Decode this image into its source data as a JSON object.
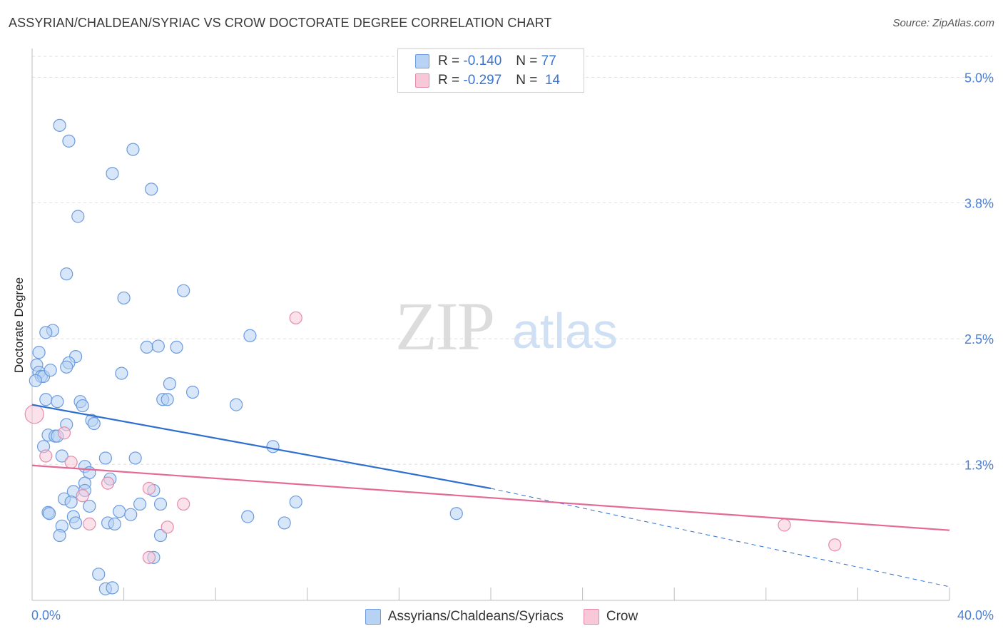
{
  "header": {
    "title": "ASSYRIAN/CHALDEAN/SYRIAC VS CROW DOCTORATE DEGREE CORRELATION CHART",
    "source": "Source: ZipAtlas.com"
  },
  "watermark": {
    "zip": "ZIP",
    "atlas": "atlas"
  },
  "legend": {
    "r_label": "R =",
    "n_label": "N =",
    "series1": {
      "r": "-0.140",
      "n": "77"
    },
    "series2": {
      "r": "-0.297",
      "n": "14"
    }
  },
  "colors": {
    "blue_fill": "#b7d2f2",
    "blue_stroke": "#6b9be0",
    "blue_line": "#2f6fd0",
    "pink_fill": "#f8c8d8",
    "pink_stroke": "#e68aaa",
    "pink_line": "#e46a95",
    "tick_text": "#4a7fd4"
  },
  "chart_data": {
    "type": "scatter",
    "title": "ASSYRIAN/CHALDEAN/SYRIAC VS CROW DOCTORATE DEGREE CORRELATION CHART",
    "xlabel": "",
    "ylabel": "Doctorate Degree",
    "xlim": [
      0,
      40
    ],
    "ylim": [
      0,
      5.2
    ],
    "x_tick_labels": [
      "0.0%",
      "40.0%"
    ],
    "y_ticks": [
      1.3,
      2.5,
      3.8,
      5.0
    ],
    "y_tick_labels": [
      "1.3%",
      "2.5%",
      "3.8%",
      "5.0%"
    ],
    "grid": true,
    "legend_position": "top-center",
    "series": [
      {
        "name": "Assyrians/Chaldeans/Syriacs",
        "r": -0.14,
        "n": 77,
        "trend": {
          "x0": 0,
          "y0": 1.87,
          "x1": 20,
          "y1": 1.07,
          "dashed_to_x": 40,
          "dashed_to_y": 0.13
        },
        "points": [
          [
            1.2,
            4.54
          ],
          [
            1.6,
            4.39
          ],
          [
            4.4,
            4.31
          ],
          [
            3.5,
            4.08
          ],
          [
            5.2,
            3.93
          ],
          [
            2.0,
            3.67
          ],
          [
            1.5,
            3.12
          ],
          [
            4.0,
            2.89
          ],
          [
            6.6,
            2.96
          ],
          [
            0.9,
            2.58
          ],
          [
            0.6,
            2.56
          ],
          [
            9.5,
            2.53
          ],
          [
            0.3,
            2.37
          ],
          [
            1.9,
            2.33
          ],
          [
            1.6,
            2.27
          ],
          [
            1.5,
            2.23
          ],
          [
            0.2,
            2.25
          ],
          [
            0.3,
            2.18
          ],
          [
            0.4,
            2.14
          ],
          [
            0.5,
            2.14
          ],
          [
            0.8,
            2.2
          ],
          [
            0.15,
            2.1
          ],
          [
            3.9,
            2.17
          ],
          [
            5.0,
            2.42
          ],
          [
            5.5,
            2.43
          ],
          [
            6.3,
            2.42
          ],
          [
            6.0,
            2.07
          ],
          [
            7.0,
            1.99
          ],
          [
            0.6,
            1.92
          ],
          [
            1.1,
            1.9
          ],
          [
            2.1,
            1.9
          ],
          [
            2.2,
            1.86
          ],
          [
            5.7,
            1.92
          ],
          [
            5.9,
            1.92
          ],
          [
            8.9,
            1.87
          ],
          [
            2.6,
            1.72
          ],
          [
            2.7,
            1.69
          ],
          [
            1.5,
            1.68
          ],
          [
            0.7,
            1.58
          ],
          [
            1.0,
            1.57
          ],
          [
            1.1,
            1.57
          ],
          [
            4.5,
            1.36
          ],
          [
            0.5,
            1.47
          ],
          [
            1.3,
            1.38
          ],
          [
            3.2,
            1.36
          ],
          [
            10.5,
            1.47
          ],
          [
            2.3,
            1.28
          ],
          [
            2.5,
            1.22
          ],
          [
            3.4,
            1.16
          ],
          [
            2.3,
            1.12
          ],
          [
            1.8,
            1.04
          ],
          [
            2.3,
            1.05
          ],
          [
            5.3,
            1.05
          ],
          [
            1.4,
            0.97
          ],
          [
            1.7,
            0.94
          ],
          [
            4.7,
            0.92
          ],
          [
            5.6,
            0.92
          ],
          [
            2.5,
            0.9
          ],
          [
            11.5,
            0.94
          ],
          [
            0.7,
            0.84
          ],
          [
            0.75,
            0.83
          ],
          [
            3.8,
            0.85
          ],
          [
            4.3,
            0.82
          ],
          [
            1.8,
            0.8
          ],
          [
            9.4,
            0.8
          ],
          [
            18.5,
            0.83
          ],
          [
            3.3,
            0.74
          ],
          [
            3.6,
            0.73
          ],
          [
            1.9,
            0.74
          ],
          [
            1.3,
            0.71
          ],
          [
            11.0,
            0.74
          ],
          [
            1.2,
            0.62
          ],
          [
            5.6,
            0.62
          ],
          [
            5.3,
            0.41
          ],
          [
            2.9,
            0.25
          ],
          [
            3.2,
            0.11
          ],
          [
            3.5,
            0.12
          ]
        ]
      },
      {
        "name": "Crow",
        "r": -0.297,
        "n": 14,
        "trend": {
          "x0": 0,
          "y0": 1.29,
          "x1": 40,
          "y1": 0.67
        },
        "points": [
          [
            0.1,
            1.78
          ],
          [
            11.5,
            2.7
          ],
          [
            1.4,
            1.6
          ],
          [
            0.6,
            1.38
          ],
          [
            1.7,
            1.32
          ],
          [
            3.3,
            1.12
          ],
          [
            5.1,
            1.07
          ],
          [
            2.2,
            1.0
          ],
          [
            6.6,
            0.92
          ],
          [
            2.5,
            0.73
          ],
          [
            5.9,
            0.7
          ],
          [
            5.1,
            0.41
          ],
          [
            32.8,
            0.72
          ],
          [
            35.0,
            0.53
          ]
        ]
      }
    ]
  }
}
